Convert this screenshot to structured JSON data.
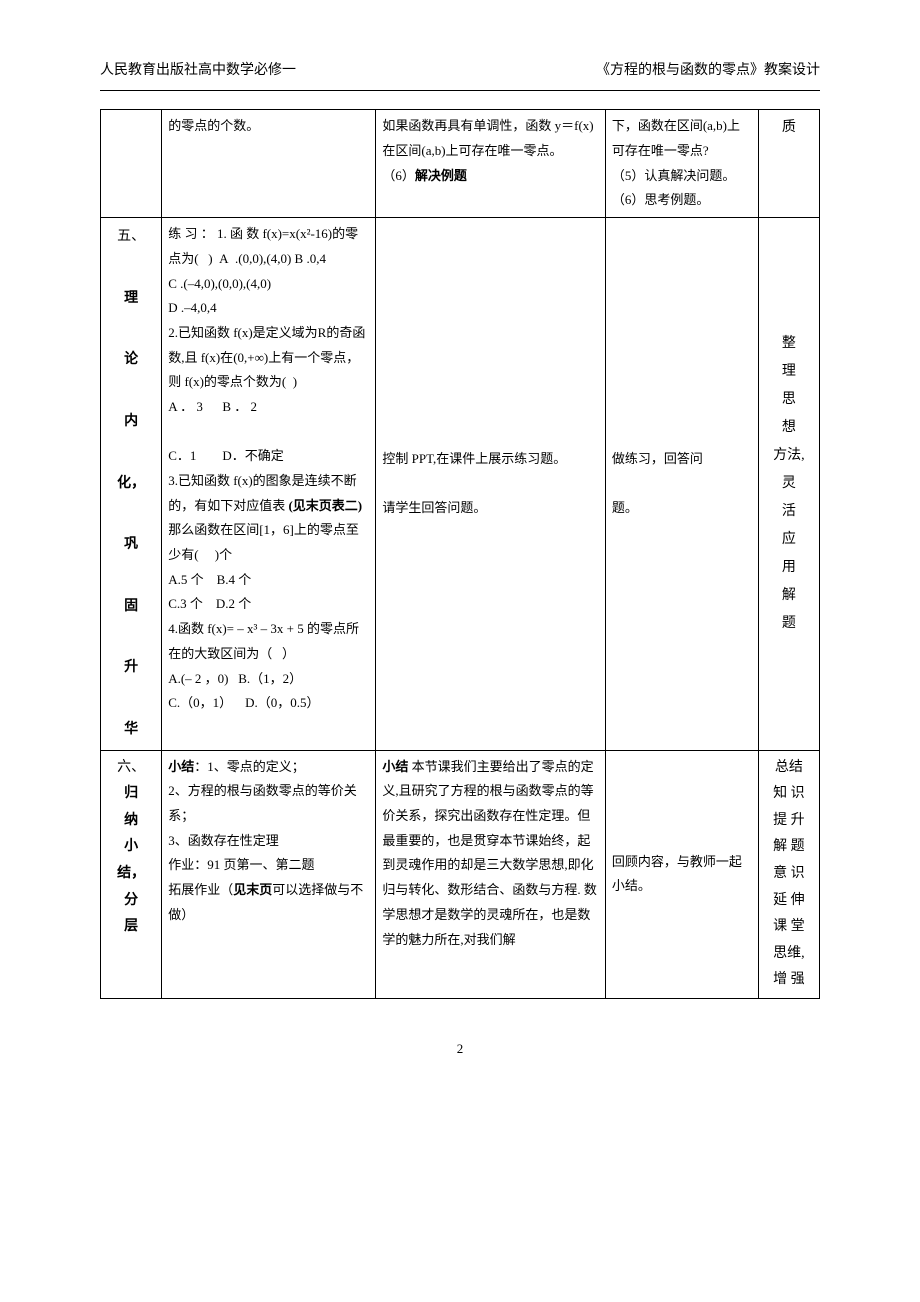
{
  "header": {
    "left": "人民教育出版社高中数学必修一",
    "right": "《方程的根与函数的零点》教案设计"
  },
  "rows": [
    {
      "col1": "",
      "col2": "的零点的个数。",
      "col3_lines": [
        "如果函数再具有单调性，函数 y＝f(x)在区间(a,b)上可存在唯一零点。",
        "（6）<b>解决例题</b>"
      ],
      "col4_lines": [
        "下，函数在区间(a,b)上可存在唯一零点?",
        "（5）认真解决问题。",
        "（6）思考例题。"
      ],
      "col5": "质"
    },
    {
      "col1_lines": [
        "五、",
        "",
        "<b>理</b>",
        "",
        "<b>论</b>",
        "",
        "<b>内</b>",
        "",
        "<b>化，</b>",
        "",
        "<b>巩</b>",
        "",
        "<b>固</b>",
        "",
        "<b>升</b>",
        "",
        "<b>华</b>"
      ],
      "col2_html": "练 习 ： 1. 函 数 f(x)=x(x²-16)的零点为(&nbsp;&nbsp;&nbsp;)&nbsp;&nbsp;A&nbsp;&nbsp;.(0,0),(4,0) B .0,4<br>C .(–4,0),(0,0),(4,0)<br>D .–4,0,4<br>2.已知函数 f(x)是定义域为R的奇函数,且 f(x)在(0,+∞)上有一个零点，则 f(x)的零点个数为(&nbsp;&nbsp;)<br>A ． 3 &nbsp;&nbsp;&nbsp;&nbsp; B ． 2<br><br>C．1&nbsp;&nbsp;&nbsp;&nbsp;&nbsp;&nbsp;&nbsp;&nbsp;D．不确定<br>3.已知函数 f(x)的图象是连续不断的，有如下对应值表 <b>(见末页表二)</b> 那么函数在区间[1，6]上的零点至少有(&nbsp;&nbsp;&nbsp;&nbsp;&nbsp;)个<br>A.5 个&nbsp;&nbsp;&nbsp;&nbsp;B.4 个<br>C.3 个&nbsp;&nbsp;&nbsp;&nbsp;D.2 个<br>4.函数 f(x)= – x³ – 3x + 5 的零点所在的大致区间为（&nbsp;&nbsp;&nbsp;）<br>A.(– 2 ，0)&nbsp;&nbsp;&nbsp;B.（1，2）<br>C.（0，1）&nbsp;&nbsp;&nbsp;&nbsp;D.（0，0.5）",
      "col3_html": "控制 PPT,在课件上展示练习题。<br><br>请学生回答问题。",
      "col4_html": "做练习，回答问<br><br>题。",
      "col5_lines": [
        "整",
        "理",
        "思",
        "想",
        "方法,",
        "灵",
        "活",
        "应",
        "用",
        "解",
        "题"
      ]
    },
    {
      "col1_lines": [
        "六、",
        "<b>归</b>",
        "<b>纳</b>",
        "<b>小</b>",
        "<b>结，</b>",
        "<b>分</b>",
        "<b>层</b>"
      ],
      "col2_html": "<b>小结</b>：1、零点的定义；<br>2、方程的根与函数零点的等价关系；<br>3、函数存在性定理<br>作业：91 页第一、第二题<br>拓展作业（<b>见末页</b>可以选择做与不做）",
      "col3_html": "<b>小结</b> 本节课我们主要给出了零点的定义,且研究了方程的根与函数零点的等价关系，探究出函数存在性定理。但最重要的，也是贯穿本节课始终，起到灵魂作用的却是三大数学思想,即化归与转化、数形结合、函数与方程. 数学思想才是数学的灵魂所在，也是数学的魅力所在,对我们解",
      "col4_html": "回顾内容，与教师一起小结。",
      "col5_lines": [
        "总结",
        "知 识",
        "提 升",
        "解 题",
        "意 识",
        "延 伸",
        "课 堂",
        "思维,",
        "增 强"
      ]
    }
  ],
  "footer": "2"
}
